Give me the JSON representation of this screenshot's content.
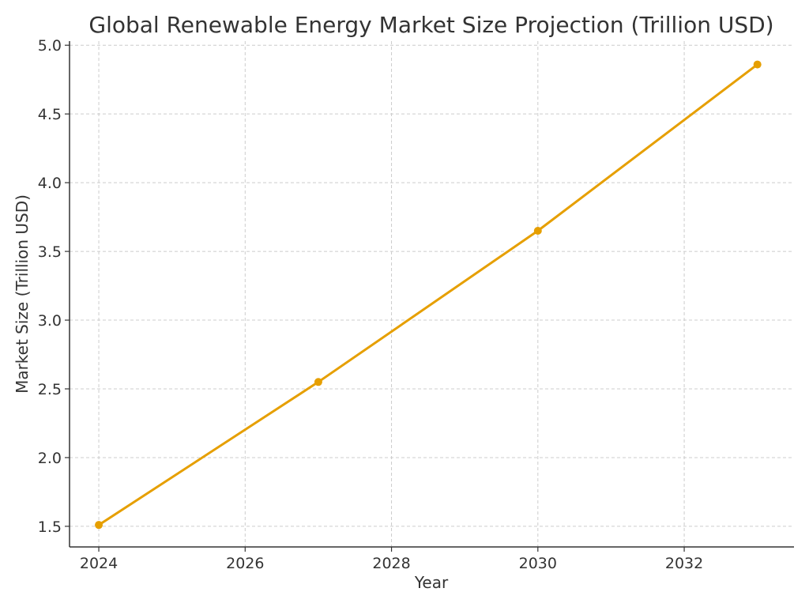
{
  "chart_data": {
    "type": "line",
    "title": "Global Renewable Energy Market Size Projection (Trillion USD)",
    "xlabel": "Year",
    "ylabel": "Market Size (Trillion USD)",
    "x": [
      2024,
      2027,
      2030,
      2033
    ],
    "series": [
      {
        "values": [
          1.51,
          2.55,
          3.65,
          4.86
        ],
        "color": "#E69F00",
        "marker": "circle"
      }
    ],
    "xlim": [
      2023.6,
      2033.5
    ],
    "ylim": [
      1.35,
      5.03
    ],
    "xticks": [
      2024,
      2026,
      2028,
      2030,
      2032
    ],
    "xtick_labels": [
      "2024",
      "2026",
      "2028",
      "2030",
      "2032"
    ],
    "yticks": [
      1.5,
      2.0,
      2.5,
      3.0,
      3.5,
      4.0,
      4.5,
      5.0
    ],
    "ytick_labels": [
      "1.5",
      "2.0",
      "2.5",
      "3.0",
      "3.5",
      "4.0",
      "4.5",
      "5.0"
    ],
    "grid": true,
    "legend": "none"
  }
}
